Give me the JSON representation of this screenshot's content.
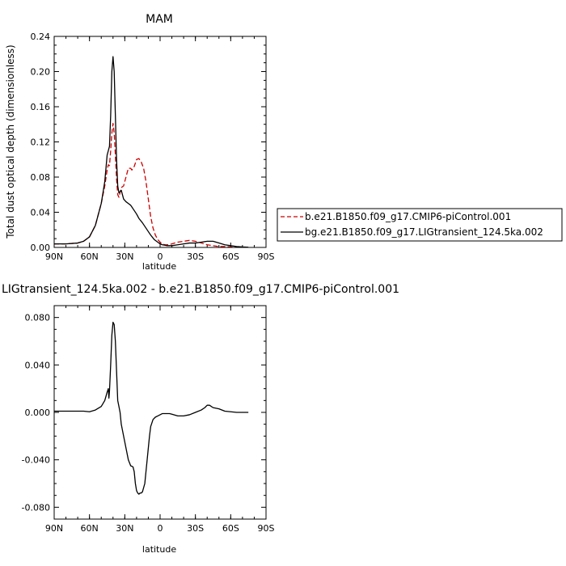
{
  "legend": {
    "entries": [
      {
        "label": "b.e21.B1850.f09_g17.CMIP6-piControl.001",
        "color": "#cc0000",
        "dash": true
      },
      {
        "label": "bg.e21.B1850.f09_g17.LIGtransient_124.5ka.002",
        "color": "#000000",
        "dash": false
      }
    ]
  },
  "chart_data": [
    {
      "type": "line",
      "title": "MAM",
      "xlabel": "latitude",
      "ylabel": "Total dust optical depth (dimensionless)",
      "xlim": [
        90,
        -90
      ],
      "ylim": [
        0,
        0.24
      ],
      "x_ticks": [
        90,
        60,
        30,
        0,
        -30,
        -60,
        -90
      ],
      "x_tick_labels": [
        "90N",
        "60N",
        "30N",
        "0",
        "30S",
        "60S",
        "90S"
      ],
      "y_ticks": [
        0,
        0.04,
        0.08,
        0.12,
        0.16,
        0.2,
        0.24
      ],
      "y_tick_labels": [
        "0.00",
        "0.04",
        "0.08",
        "0.12",
        "0.16",
        "0.20",
        "0.24"
      ],
      "series": [
        {
          "name": "b.e21.B1850.f09_g17.CMIP6-piControl.001",
          "color": "#cc0000",
          "dash": true,
          "x": [
            90,
            80,
            70,
            65,
            60,
            55,
            50,
            47,
            45,
            44,
            43,
            42,
            41,
            40,
            39,
            38,
            37,
            36,
            35,
            33,
            31,
            29,
            27,
            25,
            24,
            22,
            20,
            18,
            16,
            14,
            12,
            10,
            8,
            6,
            4,
            2,
            0,
            -2,
            -4,
            -6,
            -10,
            -15,
            -20,
            -25,
            -30,
            -35,
            -40,
            -45,
            -50,
            -55,
            -60,
            -65,
            -70,
            -75
          ],
          "y": [
            0.004,
            0.004,
            0.005,
            0.007,
            0.012,
            0.025,
            0.05,
            0.07,
            0.088,
            0.094,
            0.093,
            0.11,
            0.13,
            0.141,
            0.13,
            0.105,
            0.078,
            0.06,
            0.057,
            0.068,
            0.07,
            0.08,
            0.09,
            0.09,
            0.088,
            0.092,
            0.1,
            0.101,
            0.097,
            0.09,
            0.075,
            0.055,
            0.035,
            0.022,
            0.014,
            0.009,
            0.006,
            0.004,
            0.003,
            0.003,
            0.004,
            0.006,
            0.007,
            0.008,
            0.007,
            0.005,
            0.003,
            0.002,
            0.001,
            0.001,
            0.0005,
            0.0003,
            0.0002,
            0.0001
          ]
        },
        {
          "name": "bg.e21.B1850.f09_g17.LIGtransient_124.5ka.002",
          "color": "#000000",
          "dash": false,
          "x": [
            90,
            80,
            70,
            65,
            60,
            55,
            50,
            47,
            45,
            44,
            43,
            42,
            41,
            40,
            39,
            38,
            37,
            36,
            35,
            33,
            31,
            29,
            27,
            25,
            22,
            20,
            18,
            15,
            12,
            10,
            8,
            5,
            2,
            0,
            -2,
            -4,
            -6,
            -10,
            -15,
            -20,
            -25,
            -30,
            -35,
            -40,
            -45,
            -50,
            -55,
            -60,
            -65,
            -70,
            -75
          ],
          "y": [
            0.004,
            0.004,
            0.005,
            0.007,
            0.012,
            0.025,
            0.05,
            0.075,
            0.105,
            0.11,
            0.115,
            0.15,
            0.2,
            0.217,
            0.2,
            0.15,
            0.1,
            0.07,
            0.062,
            0.065,
            0.055,
            0.052,
            0.05,
            0.048,
            0.042,
            0.038,
            0.033,
            0.028,
            0.022,
            0.018,
            0.014,
            0.009,
            0.006,
            0.004,
            0.003,
            0.0025,
            0.002,
            0.002,
            0.003,
            0.004,
            0.005,
            0.005,
            0.006,
            0.007,
            0.007,
            0.005,
            0.003,
            0.002,
            0.001,
            0.0005,
            0.0002
          ]
        }
      ]
    },
    {
      "type": "line",
      "title": "LIGtransient_124.5ka.002 - b.e21.B1850.f09_g17.CMIP6-piControl.001",
      "xlabel": "latitude",
      "ylabel": "",
      "xlim": [
        90,
        -90
      ],
      "ylim": [
        -0.09,
        0.09
      ],
      "x_ticks": [
        90,
        60,
        30,
        0,
        -30,
        -60,
        -90
      ],
      "x_tick_labels": [
        "90N",
        "60N",
        "30N",
        "0",
        "30S",
        "60S",
        "90S"
      ],
      "y_ticks": [
        -0.08,
        -0.04,
        0,
        0.04,
        0.08
      ],
      "y_tick_labels": [
        "-0.080",
        "-0.040",
        "0.000",
        "0.040",
        "0.080"
      ],
      "series": [
        {
          "color": "#000000",
          "dash": false,
          "x": [
            90,
            80,
            70,
            65,
            60,
            55,
            50,
            47,
            45,
            44,
            43.5,
            43,
            42,
            41,
            40,
            39,
            38,
            37,
            36,
            35,
            34,
            33,
            31,
            29,
            27,
            25,
            23,
            22,
            21,
            20,
            19,
            18,
            17,
            16,
            15,
            13,
            12,
            11,
            10,
            9,
            8,
            6,
            4,
            2,
            0,
            -2,
            -5,
            -8,
            -10,
            -15,
            -20,
            -25,
            -30,
            -35,
            -38,
            -40,
            -42,
            -45,
            -50,
            -55,
            -60,
            -65,
            -70,
            -75
          ],
          "y": [
            0.001,
            0.001,
            0.001,
            0.001,
            0.0005,
            0.002,
            0.005,
            0.01,
            0.017,
            0.02,
            0.012,
            0.018,
            0.04,
            0.065,
            0.076,
            0.074,
            0.06,
            0.035,
            0.01,
            0.005,
            0.0,
            -0.01,
            -0.02,
            -0.03,
            -0.04,
            -0.045,
            -0.046,
            -0.05,
            -0.06,
            -0.066,
            -0.068,
            -0.069,
            -0.068,
            -0.068,
            -0.067,
            -0.06,
            -0.05,
            -0.04,
            -0.03,
            -0.02,
            -0.012,
            -0.006,
            -0.004,
            -0.003,
            -0.002,
            -0.001,
            -0.001,
            -0.001,
            -0.0015,
            -0.003,
            -0.003,
            -0.002,
            0.0,
            0.002,
            0.004,
            0.006,
            0.006,
            0.004,
            0.003,
            0.001,
            0.0005,
            0.0,
            0.0,
            0.0
          ]
        }
      ]
    }
  ]
}
